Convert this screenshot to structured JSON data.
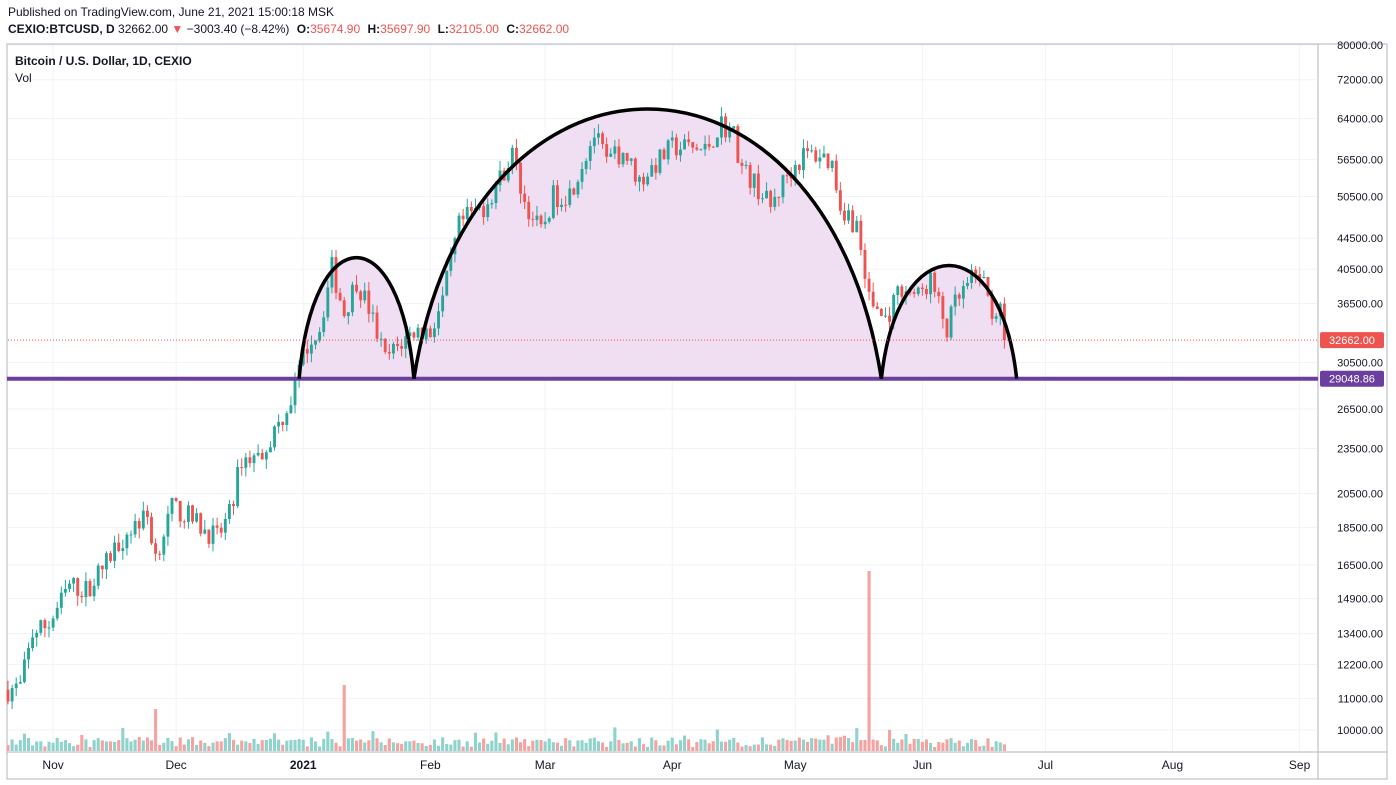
{
  "header": {
    "published": "Published on TradingView.com, June 21, 2021 15:00:18 MSK",
    "symbol": "CEXIO:BTCUSD, D",
    "last_price": "32662.00",
    "change": "−3003.40 (−8.42%)",
    "open_label": "O:",
    "open": "35674.90",
    "high_label": "H:",
    "high": "35697.90",
    "low_label": "L:",
    "low": "32105.00",
    "close_label": "C:",
    "close": "32662.00"
  },
  "legend": {
    "title": "Bitcoin / U.S. Dollar, 1D, CEXIO",
    "volume": "Vol"
  },
  "colors": {
    "up": "#26a69a",
    "down": "#ef5350",
    "vol_up": "#8fd3cc",
    "vol_down": "#f5a3a1",
    "fill": "#eedaf2",
    "support": "#6b3fa0",
    "arc": "#000000"
  },
  "chart_data": {
    "type": "candlestick",
    "scale": "log",
    "x_start": "2020-10-21",
    "x_end": "2021-09-05",
    "y_ticks": [
      "80000.00",
      "72000.00",
      "64000.00",
      "56500.00",
      "50500.00",
      "44500.00",
      "40500.00",
      "36500.00",
      "30500.00",
      "26500.00",
      "23500.00",
      "20500.00",
      "18500.00",
      "16500.00",
      "14900.00",
      "13400.00",
      "12200.00",
      "11000.00",
      "10000.00"
    ],
    "x_ticks": [
      {
        "label": "Nov",
        "date": "2020-11-01"
      },
      {
        "label": "Dec",
        "date": "2020-12-01"
      },
      {
        "label": "2021",
        "date": "2021-01-01",
        "bold": true
      },
      {
        "label": "Feb",
        "date": "2021-02-01"
      },
      {
        "label": "Mar",
        "date": "2021-03-01"
      },
      {
        "label": "Apr",
        "date": "2021-04-01"
      },
      {
        "label": "May",
        "date": "2021-05-01"
      },
      {
        "label": "Jun",
        "date": "2021-06-01"
      },
      {
        "label": "Jul",
        "date": "2021-07-01"
      },
      {
        "label": "Aug",
        "date": "2021-08-01"
      },
      {
        "label": "Sep",
        "date": "2021-09-01"
      }
    ],
    "last_price_tag": "32662.00",
    "support_level": 29048.86,
    "support_tag": "29048.86",
    "close_path": [
      [
        "2020-10-21",
        11300
      ],
      [
        "2020-10-24",
        11400
      ],
      [
        "2020-10-27",
        13400
      ],
      [
        "2020-10-31",
        13800
      ],
      [
        "2020-11-05",
        15500
      ],
      [
        "2020-11-09",
        15300
      ],
      [
        "2020-11-13",
        16300
      ],
      [
        "2020-11-17",
        17700
      ],
      [
        "2020-11-21",
        18700
      ],
      [
        "2020-11-24",
        19100
      ],
      [
        "2020-11-26",
        17000
      ],
      [
        "2020-11-30",
        19600
      ],
      [
        "2020-12-03",
        19300
      ],
      [
        "2020-12-08",
        18400
      ],
      [
        "2020-12-11",
        17900
      ],
      [
        "2020-12-14",
        19200
      ],
      [
        "2020-12-17",
        22800
      ],
      [
        "2020-12-21",
        22900
      ],
      [
        "2020-12-25",
        24700
      ],
      [
        "2020-12-29",
        27300
      ],
      [
        "2021-01-02",
        32200
      ],
      [
        "2021-01-05",
        33900
      ],
      [
        "2021-01-08",
        40700
      ],
      [
        "2021-01-11",
        35500
      ],
      [
        "2021-01-14",
        39200
      ],
      [
        "2021-01-17",
        36000
      ],
      [
        "2021-01-21",
        30800
      ],
      [
        "2021-01-25",
        32400
      ],
      [
        "2021-01-28",
        33600
      ],
      [
        "2021-02-01",
        33500
      ],
      [
        "2021-02-04",
        36800
      ],
      [
        "2021-02-08",
        46200
      ],
      [
        "2021-02-11",
        47900
      ],
      [
        "2021-02-14",
        49000
      ],
      [
        "2021-02-17",
        52100
      ],
      [
        "2021-02-21",
        57500
      ],
      [
        "2021-02-24",
        49600
      ],
      [
        "2021-02-28",
        45200
      ],
      [
        "2021-03-03",
        50500
      ],
      [
        "2021-03-07",
        51100
      ],
      [
        "2021-03-10",
        55900
      ],
      [
        "2021-03-13",
        61000
      ],
      [
        "2021-03-16",
        56000
      ],
      [
        "2021-03-20",
        58000
      ],
      [
        "2021-03-24",
        53000
      ],
      [
        "2021-03-28",
        55800
      ],
      [
        "2021-04-01",
        58700
      ],
      [
        "2021-04-05",
        58600
      ],
      [
        "2021-04-09",
        58000
      ],
      [
        "2021-04-13",
        63000
      ],
      [
        "2021-04-16",
        61000
      ],
      [
        "2021-04-18",
        55000
      ],
      [
        "2021-04-22",
        51800
      ],
      [
        "2021-04-25",
        48800
      ],
      [
        "2021-04-29",
        54000
      ],
      [
        "2021-05-03",
        57200
      ],
      [
        "2021-05-07",
        57400
      ],
      [
        "2021-05-10",
        55800
      ],
      [
        "2021-05-12",
        49300
      ],
      [
        "2021-05-16",
        46200
      ],
      [
        "2021-05-19",
        37000
      ],
      [
        "2021-05-23",
        34700
      ],
      [
        "2021-05-27",
        38500
      ],
      [
        "2021-05-31",
        37300
      ],
      [
        "2021-06-03",
        39200
      ],
      [
        "2021-06-07",
        33600
      ],
      [
        "2021-06-09",
        36400
      ],
      [
        "2021-06-13",
        39100
      ],
      [
        "2021-06-15",
        40200
      ],
      [
        "2021-06-18",
        35700
      ],
      [
        "2021-06-20",
        35700
      ],
      [
        "2021-06-21",
        32662
      ]
    ],
    "volume_peaks": [
      {
        "date": "2020-11-26",
        "value": 14
      },
      {
        "date": "2021-01-11",
        "value": 22
      },
      {
        "date": "2021-05-19",
        "value": 60
      }
    ],
    "arcs": [
      {
        "name": "left-shoulder",
        "start": "2020-12-31",
        "end": "2021-01-28",
        "top": 42000
      },
      {
        "name": "head",
        "start": "2021-01-28",
        "end": "2021-05-22",
        "top": 66000
      },
      {
        "name": "right-shoulder",
        "start": "2021-05-22",
        "end": "2021-06-24",
        "top": 41000
      }
    ]
  }
}
